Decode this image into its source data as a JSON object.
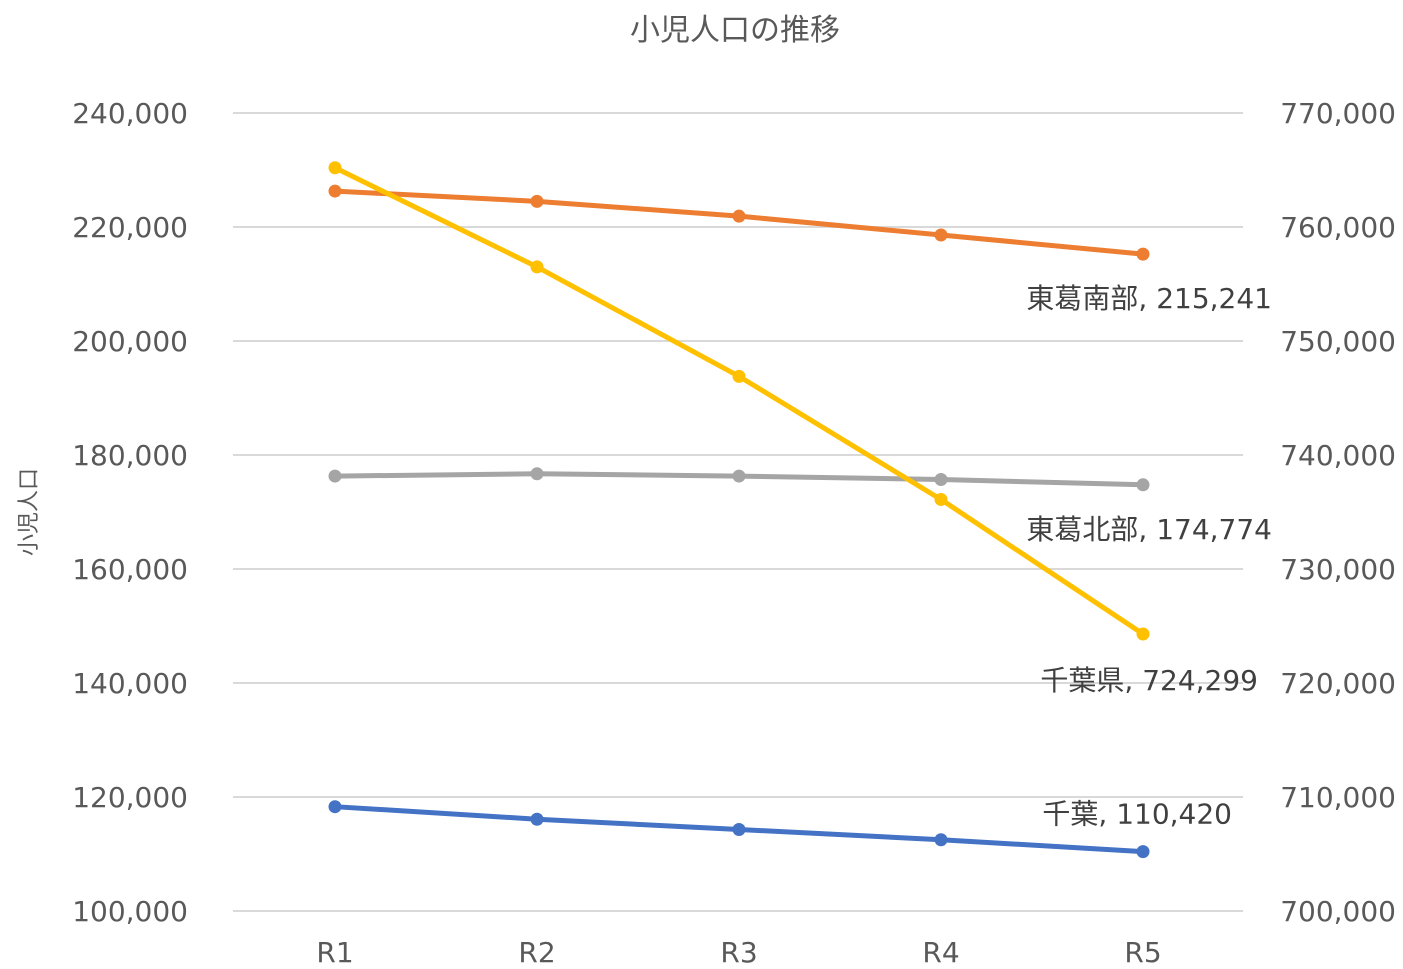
{
  "chart_data": {
    "type": "line",
    "title": "小児人口の推移",
    "xlabel": "",
    "ylabel": "小児人口",
    "categories": [
      "R1",
      "R2",
      "R3",
      "R4",
      "R5"
    ],
    "left_axis": {
      "ylim": [
        100000,
        240000
      ],
      "ticks": [
        100000,
        120000,
        140000,
        160000,
        180000,
        200000,
        220000,
        240000
      ],
      "tick_labels": [
        "100,000",
        "120,000",
        "140,000",
        "160,000",
        "180,000",
        "200,000",
        "220,000",
        "240,000"
      ]
    },
    "right_axis": {
      "ylim": [
        700000,
        770000
      ],
      "ticks": [
        700000,
        710000,
        720000,
        730000,
        740000,
        750000,
        760000,
        770000
      ],
      "tick_labels": [
        "700,000",
        "710,000",
        "720,000",
        "730,000",
        "740,000",
        "750,000",
        "760,000",
        "770,000"
      ]
    },
    "grid": true,
    "legend": "none",
    "series": [
      {
        "name": "東葛南部",
        "axis": "left",
        "color": "#ED7D31",
        "values": [
          226300,
          224500,
          221900,
          218600,
          215241
        ],
        "end_label": "東葛南部, 215,241"
      },
      {
        "name": "東葛北部",
        "axis": "left",
        "color": "#A5A5A5",
        "values": [
          176300,
          176700,
          176300,
          175700,
          174774
        ],
        "end_label": "東葛北部, 174,774"
      },
      {
        "name": "千葉",
        "axis": "left",
        "color": "#4472C4",
        "values": [
          118300,
          116100,
          114300,
          112500,
          110420
        ],
        "end_label": "千葉, 110,420"
      },
      {
        "name": "千葉県",
        "axis": "right",
        "color": "#FFC000",
        "values": [
          765200,
          756500,
          746900,
          736100,
          724299
        ],
        "end_label": "千葉県, 724,299"
      }
    ]
  }
}
